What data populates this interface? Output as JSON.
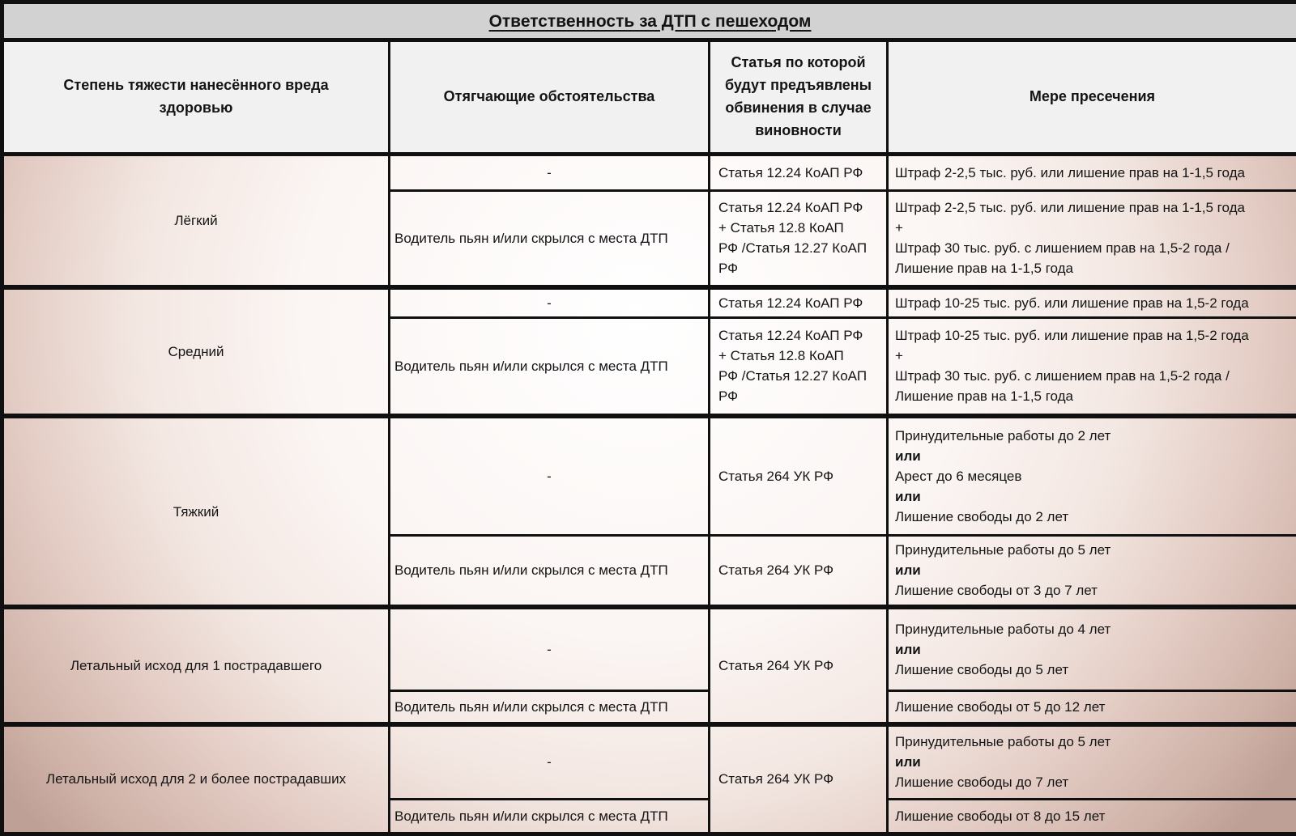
{
  "title": "Ответственность за ДТП с пешеходом",
  "columns": [
    "Степень тяжести нанесённого вреда здоровью",
    "Отягчающие обстоятельства",
    "Статья по которой будут предъявлены обвинения в случае виновности",
    "Мере пресечения"
  ],
  "groups": [
    {
      "severity": "Лёгкий",
      "rows": [
        {
          "aggravating": "-",
          "article": "Статья 12.24 КоАП РФ",
          "penalty": [
            {
              "t": "Штраф 2-2,5 тыс. руб. или лишение прав на 1-1,5 года",
              "b": false
            }
          ]
        },
        {
          "aggravating": "Водитель пьян и/или скрылся с места ДТП",
          "article": "Статья 12.24 КоАП РФ\n+ Статья 12.8 КоАП\nРФ /Статья 12.27 КоАП\nРФ",
          "penalty": [
            {
              "t": "Штраф 2-2,5 тыс. руб. или лишение прав на 1-1,5 года",
              "b": false
            },
            {
              "t": "+",
              "b": false
            },
            {
              "t": "Штраф 30 тыс. руб. с лишением прав  на 1,5-2 года /",
              "b": false
            },
            {
              "t": "Лишение прав на 1-1,5 года",
              "b": false
            }
          ]
        }
      ]
    },
    {
      "severity": "Средний",
      "rows": [
        {
          "aggravating": "-",
          "article": "Статья 12.24 КоАП РФ",
          "penalty": [
            {
              "t": "Штраф 10-25 тыс. руб. или лишение прав на 1,5-2 года",
              "b": false
            }
          ]
        },
        {
          "aggravating": "Водитель пьян и/или скрылся с места ДТП",
          "article": "Статья 12.24 КоАП РФ\n+ Статья 12.8 КоАП\nРФ /Статья 12.27 КоАП\nРФ",
          "penalty": [
            {
              "t": "Штраф 10-25 тыс. руб. или лишение прав на 1,5-2 года",
              "b": false
            },
            {
              "t": "+",
              "b": false
            },
            {
              "t": "Штраф 30 тыс. руб. с лишением прав  на 1,5-2 года /",
              "b": false
            },
            {
              "t": "Лишение прав на 1-1,5 года",
              "b": false
            }
          ]
        }
      ]
    },
    {
      "severity": "Тяжкий",
      "rows": [
        {
          "aggravating": "-",
          "article": "Статья 264 УК РФ",
          "penalty": [
            {
              "t": "Принудительные работы до 2 лет",
              "b": false
            },
            {
              "t": "или",
              "b": true
            },
            {
              "t": "Арест до 6 месяцев",
              "b": false
            },
            {
              "t": "или",
              "b": true
            },
            {
              "t": "Лишение свободы до 2 лет",
              "b": false
            }
          ]
        },
        {
          "aggravating": "Водитель пьян и/или скрылся с места ДТП",
          "article": "Статья 264 УК РФ",
          "penalty": [
            {
              "t": "Принудительные работы до 5 лет",
              "b": false
            },
            {
              "t": "или",
              "b": true
            },
            {
              "t": "Лишение свободы от 3 до 7 лет",
              "b": false
            }
          ]
        }
      ]
    },
    {
      "severity": "Летальный исход для 1 пострадавшего",
      "article": "Статья 264 УК РФ",
      "rows": [
        {
          "aggravating": "-",
          "penalty": [
            {
              "t": "Принудительные работы до 4 лет",
              "b": false
            },
            {
              "t": "или",
              "b": true
            },
            {
              "t": "Лишение свободы до 5 лет",
              "b": false
            }
          ]
        },
        {
          "aggravating": "Водитель пьян и/или скрылся с места ДТП",
          "penalty": [
            {
              "t": "Лишение свободы от 5 до 12 лет",
              "b": false
            }
          ]
        }
      ]
    },
    {
      "severity": "Летальный исход для 2 и более пострадавших",
      "article": "Статья 264 УК РФ",
      "rows": [
        {
          "aggravating": "-",
          "penalty": [
            {
              "t": "Принудительные работы до 5 лет",
              "b": false
            },
            {
              "t": "или",
              "b": true
            },
            {
              "t": "Лишение свободы до 7 лет",
              "b": false
            }
          ]
        },
        {
          "aggravating": "Водитель пьян и/или скрылся с места ДТП",
          "penalty": [
            {
              "t": "Лишение свободы от 8 до 15 лет",
              "b": false
            }
          ]
        }
      ]
    }
  ],
  "colors": {
    "title_bg": "#d2d2d2",
    "header_bg": "#f1f1f1",
    "border": "#101010",
    "gradient_center": "#ffffff",
    "gradient_edge": "#bfa097"
  }
}
